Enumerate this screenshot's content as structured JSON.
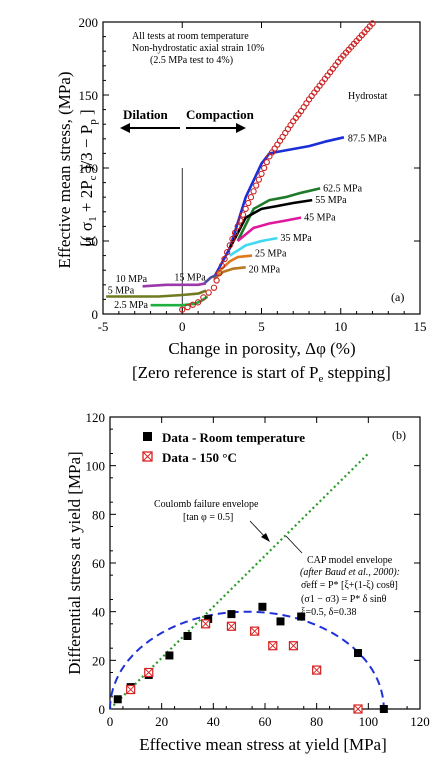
{
  "chart_data": [
    {
      "type": "line",
      "panel_label": "(a)",
      "xlabel": "Change in porosity,  Δφ (%)",
      "xlabel_sub": "[Zero reference is start of P",
      "xlabel_sub_subscript": "e",
      "xlabel_sub_tail": " stepping]",
      "ylabel": "Effective mean stress,  (MPa)",
      "ylabel2": "[( σ",
      "ylabel2_parts": [
        "[( σ",
        "1",
        " + 2P",
        "c",
        " )/3 − P",
        "p",
        " ]"
      ],
      "xlim": [
        -5,
        15
      ],
      "ylim": [
        0,
        200
      ],
      "xticks": [
        -5,
        0,
        5,
        10,
        15
      ],
      "yticks": [
        0,
        50,
        100,
        150,
        200
      ],
      "notes": [
        "All tests at room temperature",
        "Non-hydrostatic axial strain 10%",
        "(2.5 MPa test to 4%)"
      ],
      "arrow_left_label": "Dilation",
      "arrow_right_label": "Compaction",
      "hydrostat": {
        "name": "Hydrostat",
        "color": "#cc2020",
        "x": [
          0,
          1,
          2,
          2.5,
          3,
          3.5,
          4,
          4.5,
          5,
          5.5,
          6,
          6.5,
          7,
          7.5,
          8,
          8.5,
          9,
          9.5,
          10,
          10.5,
          11,
          11.5,
          12,
          12.5
        ],
        "y": [
          3,
          8,
          18,
          33,
          47,
          60,
          72,
          84,
          96,
          108,
          116,
          124,
          132,
          139,
          147,
          154,
          161,
          168,
          175,
          181,
          187,
          193,
          199,
          205
        ]
      },
      "series": [
        {
          "name": "87.5 MPa",
          "color": "#1a2fd6",
          "x": [
            2,
            3,
            4,
            5,
            5.5,
            6,
            7,
            8,
            9,
            10.2
          ],
          "y": [
            25,
            45,
            80,
            103,
            110,
            111,
            113,
            115,
            118,
            121
          ]
        },
        {
          "name": "62.5 MPa",
          "color": "#1e7a2a",
          "x": [
            3.5,
            4.5,
            5.5,
            6.5,
            7.5,
            8.7
          ],
          "y": [
            50,
            72,
            78,
            80,
            83,
            86
          ]
        },
        {
          "name": "55 MPa",
          "color": "#000000",
          "x": [
            3,
            4,
            5,
            6,
            7,
            8.2
          ],
          "y": [
            45,
            66,
            72,
            74,
            76,
            78
          ]
        },
        {
          "name": "45 MPa",
          "color": "#e0189e",
          "x": [
            3.5,
            4.5,
            5.5,
            6.5,
            7.5
          ],
          "y": [
            50,
            59,
            62,
            64,
            66
          ]
        },
        {
          "name": "35 MPa",
          "color": "#40d8f0",
          "x": [
            3,
            4,
            5,
            6
          ],
          "y": [
            40,
            47,
            50,
            52
          ]
        },
        {
          "name": "25 MPa",
          "color": "#e07818",
          "x": [
            2.2,
            3,
            3.5,
            4.4
          ],
          "y": [
            28,
            36,
            39,
            40
          ]
        },
        {
          "name": "20 MPa",
          "color": "#b87820",
          "x": [
            2,
            2.6,
            3.2,
            4
          ],
          "y": [
            24,
            29,
            31,
            32
          ]
        },
        {
          "name": "15 MPa",
          "color": "#4a4aa0",
          "x": [
            1.4,
            1.8,
            2.2
          ],
          "y": [
            21,
            25,
            27
          ]
        },
        {
          "name": "10 MPa",
          "color": "#9a3aa8",
          "x": [
            -2.5,
            -1,
            0,
            1,
            1.5
          ],
          "y": [
            19,
            20,
            20,
            20,
            21
          ]
        },
        {
          "name": "5 MPa",
          "color": "#707a20",
          "x": [
            -4.8,
            -3,
            -1.5,
            0,
            1,
            1.5
          ],
          "y": [
            12,
            12,
            12,
            13,
            14,
            16
          ]
        },
        {
          "name": "2.5 MPa",
          "color": "#20b040",
          "x": [
            -2,
            -1,
            0,
            0.8,
            1.2,
            1.6
          ],
          "y": [
            6,
            6,
            6,
            7,
            9,
            12
          ]
        }
      ]
    },
    {
      "type": "scatter",
      "panel_label": "(b)",
      "xlabel": "Effective mean stress at yield  [MPa]",
      "ylabel": "Differential stress at yield [MPa]",
      "xlim": [
        0,
        120
      ],
      "ylim": [
        0,
        120
      ],
      "xticks": [
        0,
        20,
        40,
        60,
        80,
        100,
        120
      ],
      "yticks": [
        0,
        20,
        40,
        60,
        80,
        100,
        120
      ],
      "series": [
        {
          "name": "Data - Room temperature",
          "color": "#000000",
          "marker": "filled-square",
          "x": [
            3,
            8,
            15,
            23,
            30,
            38,
            47,
            59,
            66,
            74,
            96,
            106
          ],
          "y": [
            4,
            9,
            14,
            22,
            30,
            37,
            39,
            42,
            36,
            38,
            23,
            0
          ]
        },
        {
          "name": "Data - 150 °C",
          "color": "#d82020",
          "marker": "crossed-square",
          "x": [
            8,
            15,
            37,
            47,
            56,
            63,
            71,
            80,
            96
          ],
          "y": [
            8,
            15,
            35,
            34,
            32,
            26,
            26,
            16,
            0
          ]
        }
      ],
      "coulomb": {
        "color": "#2a9a2a",
        "x": [
          0,
          100
        ],
        "y": [
          0,
          105
        ],
        "label": "Coulomb failure envelope",
        "sublabel": "[tan φ = 0.5]"
      },
      "cap": {
        "color": "#2030d8",
        "center": 53,
        "half_width": 53,
        "height": 40,
        "label": "CAP model envelope",
        "label2": "(after Baud et al., 2000):",
        "eq1": "σ̄eff = P* [ξ+(1-ξ) cosθ]",
        "eq2": "(σ1 − σ3) = P* δ sinθ",
        "eq3": "ξ=0.5, δ=0.38"
      }
    }
  ]
}
